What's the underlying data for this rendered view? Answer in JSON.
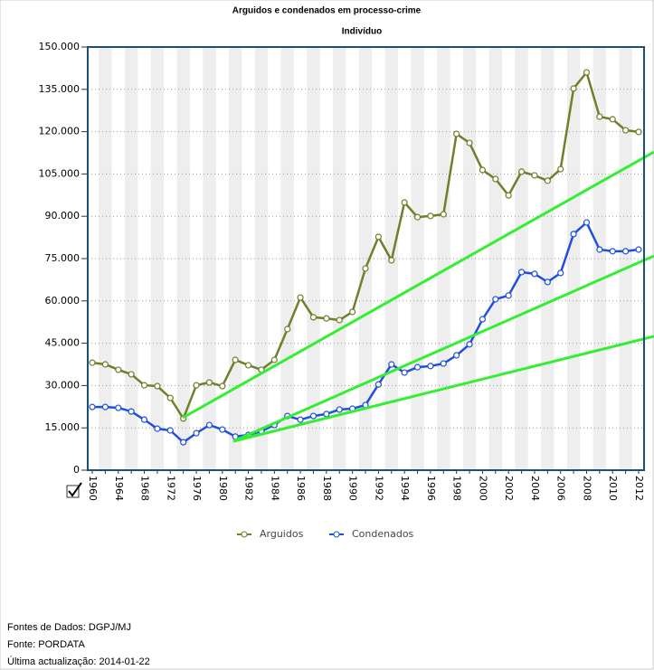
{
  "chart_data": {
    "type": "line",
    "title": "Arguidos e condenados em processo-crime",
    "subtitle": "Indivíduo",
    "categories": [
      "1960",
      null,
      "1964",
      null,
      "1968",
      null,
      "1972",
      null,
      "1976",
      null,
      "1980",
      null,
      "1982",
      null,
      "1984",
      null,
      "1986",
      null,
      "1988",
      null,
      "1990",
      null,
      "1992",
      null,
      "1994",
      null,
      "1996",
      null,
      "1998",
      null,
      "2000",
      null,
      "2002",
      null,
      "2004",
      null,
      "2006",
      null,
      "2008",
      null,
      "2010",
      null,
      "2012"
    ],
    "series": [
      {
        "name": "Arguidos",
        "color": "#6f7f2a",
        "values": [
          38100,
          37500,
          35600,
          34000,
          30100,
          29800,
          25600,
          18300,
          30100,
          31100,
          29800,
          39100,
          37200,
          35600,
          39100,
          50000,
          61200,
          54200,
          53800,
          53200,
          56100,
          71500,
          82700,
          74400,
          94900,
          89700,
          90100,
          90700,
          119200,
          116000,
          106400,
          103200,
          97400,
          105800,
          104500,
          102600,
          106700,
          135300,
          141000,
          125300,
          124400,
          120500,
          119900
        ]
      },
      {
        "name": "Condenados",
        "color": "#1f4fe0",
        "values": [
          22400,
          22400,
          22100,
          20800,
          17900,
          14700,
          14100,
          9900,
          13100,
          16000,
          14400,
          11900,
          12500,
          13800,
          16000,
          19200,
          17900,
          19200,
          19900,
          21500,
          21800,
          23100,
          30400,
          37500,
          34600,
          36500,
          36900,
          37800,
          40700,
          44600,
          53500,
          60600,
          61900,
          70200,
          69600,
          66700,
          69900,
          83700,
          87800,
          78200,
          77600,
          77600,
          78200
        ]
      }
    ],
    "ylim": [
      0,
      150000
    ],
    "yticks": [
      0,
      {
        "value": 15000,
        "label": "15.000"
      },
      {
        "value": 30000,
        "label": "30.000"
      },
      {
        "value": 45000,
        "label": "45.000"
      },
      {
        "value": 60000,
        "label": "60.000"
      },
      {
        "value": 75000,
        "label": "75.000"
      },
      {
        "value": 90000,
        "label": "90.000"
      },
      {
        "value": 105000,
        "label": "105.000"
      },
      {
        "value": 120000,
        "label": "120.000"
      },
      {
        "value": 135000,
        "label": "135.000"
      },
      {
        "value": 150000,
        "label": "150.000"
      }
    ],
    "grid": true,
    "legend": "bottom"
  },
  "notes": [
    "Fontes de Dados: DGPJ/MJ",
    "Fonte: PORDATA",
    "Última actualização: 2014-01-22"
  ]
}
